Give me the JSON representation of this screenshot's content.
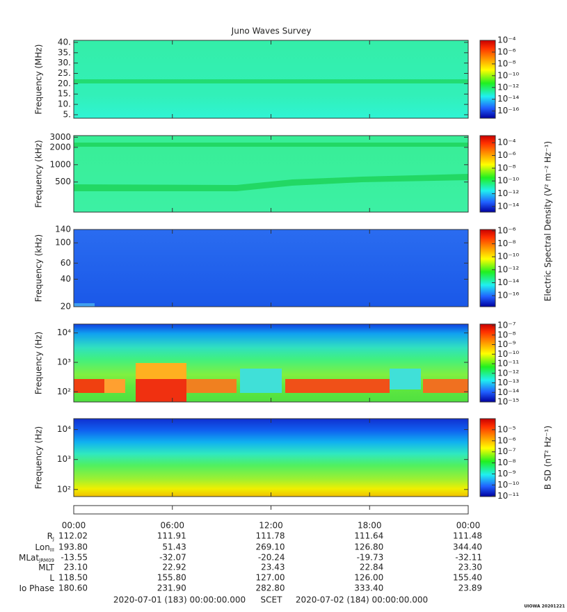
{
  "title": "Juno Waves Survey",
  "chart_data": [
    {
      "type": "spectrogram",
      "y_label": "Frequency (MHz)",
      "log": false,
      "ylim": [
        3.3,
        41
      ],
      "yticks": [
        {
          "value": 5,
          "label": "5."
        },
        {
          "value": 10,
          "label": "10."
        },
        {
          "value": 15,
          "label": "15."
        },
        {
          "value": 20,
          "label": "20."
        },
        {
          "value": 25,
          "label": "25."
        },
        {
          "value": 30,
          "label": "30."
        },
        {
          "value": 35,
          "label": "35."
        },
        {
          "value": 40,
          "label": "40."
        }
      ],
      "clim": [
        6e-18,
        0.0001
      ],
      "cticks": [
        {
          "value": 0.0001,
          "label": "10⁻⁴"
        },
        {
          "value": 1e-06,
          "label": "10⁻⁶"
        },
        {
          "value": 1e-08,
          "label": "10⁻⁸"
        },
        {
          "value": 1e-10,
          "label": "10⁻¹⁰"
        },
        {
          "value": 1e-12,
          "label": "10⁻¹²"
        },
        {
          "value": 1e-14,
          "label": "10⁻¹⁴"
        },
        {
          "value": 1e-16,
          "label": "10⁻¹⁶"
        }
      ]
    },
    {
      "type": "spectrogram",
      "y_label": "Frequency (kHz)",
      "log": true,
      "ylim": [
        150,
        3200
      ],
      "yticks": [
        500,
        1000,
        2000,
        3000
      ],
      "clim": [
        1.3e-15,
        0.0013
      ],
      "cticks": [
        {
          "value": 0.0001,
          "label": "10⁻⁴"
        },
        {
          "value": 1e-06,
          "label": "10⁻⁶"
        },
        {
          "value": 1e-08,
          "label": "10⁻⁸"
        },
        {
          "value": 1e-10,
          "label": "10⁻¹⁰"
        },
        {
          "value": 1e-12,
          "label": "10⁻¹²"
        },
        {
          "value": 1e-14,
          "label": "10⁻¹⁴"
        }
      ],
      "colorbar_label": "Electric Spectral Density (V² m⁻² Hz⁻¹)"
    },
    {
      "type": "spectrogram",
      "y_label": "Frequency (kHz)",
      "log": true,
      "ylim": [
        20,
        140
      ],
      "yticks": [
        20,
        40,
        60,
        100,
        140
      ],
      "clim": [
        2e-18,
        1.6e-06
      ],
      "cticks": [
        {
          "value": 1e-06,
          "label": "10⁻⁶"
        },
        {
          "value": 1e-08,
          "label": "10⁻⁸"
        },
        {
          "value": 1e-10,
          "label": "10⁻¹⁰"
        },
        {
          "value": 1e-12,
          "label": "10⁻¹²"
        },
        {
          "value": 1e-14,
          "label": "10⁻¹⁴"
        },
        {
          "value": 1e-16,
          "label": "10⁻¹⁶"
        }
      ]
    },
    {
      "type": "spectrogram",
      "y_label": "Frequency (Hz)",
      "log": true,
      "ylim": [
        45,
        20000
      ],
      "yticks": [
        {
          "value": 100,
          "label": "10²"
        },
        {
          "value": 1000,
          "label": "10³"
        },
        {
          "value": 10000,
          "label": "10⁴"
        }
      ],
      "clim": [
        1e-15,
        1.4e-07
      ],
      "cticks": [
        {
          "value": 1e-07,
          "label": "10⁻⁷"
        },
        {
          "value": 1e-08,
          "label": "10⁻⁸"
        },
        {
          "value": 1e-09,
          "label": "10⁻⁹"
        },
        {
          "value": 1e-10,
          "label": "10⁻¹⁰"
        },
        {
          "value": 1e-11,
          "label": "10⁻¹¹"
        },
        {
          "value": 1e-12,
          "label": "10⁻¹²"
        },
        {
          "value": 1e-13,
          "label": "10⁻¹³"
        },
        {
          "value": 1e-14,
          "label": "10⁻¹⁴"
        },
        {
          "value": 1e-15,
          "label": "10⁻¹⁵"
        }
      ]
    },
    {
      "type": "spectrogram",
      "y_label": "Frequency (Hz)",
      "log": true,
      "ylim": [
        58,
        23000
      ],
      "yticks": [
        {
          "value": 100,
          "label": "10²"
        },
        {
          "value": 1000,
          "label": "10³"
        },
        {
          "value": 10000,
          "label": "10⁴"
        }
      ],
      "clim": [
        9e-12,
        0.0001
      ],
      "cticks": [
        {
          "value": 1e-05,
          "label": "10⁻⁵"
        },
        {
          "value": 1e-06,
          "label": "10⁻⁶"
        },
        {
          "value": 1e-07,
          "label": "10⁻⁷"
        },
        {
          "value": 1e-08,
          "label": "10⁻⁸"
        },
        {
          "value": 1e-09,
          "label": "10⁻⁹"
        },
        {
          "value": 1e-10,
          "label": "10⁻¹⁰"
        },
        {
          "value": 1e-11,
          "label": "10⁻¹¹"
        }
      ],
      "colorbar_label": "B SD (nT² Hz⁻¹)"
    }
  ],
  "time_axis": {
    "xlim": [
      0,
      24
    ],
    "xticks": [
      {
        "value": 0,
        "label": "00:00"
      },
      {
        "value": 6,
        "label": "06:00"
      },
      {
        "value": 12,
        "label": "12:00"
      },
      {
        "value": 18,
        "label": "18:00"
      },
      {
        "value": 24,
        "label": "00:00"
      }
    ]
  },
  "ephemeris": [
    {
      "label": "R",
      "sub": "J",
      "values": [
        "112.02",
        "111.91",
        "111.78",
        "111.64",
        "111.48"
      ]
    },
    {
      "label": "Lon",
      "sub": "III",
      "values": [
        "193.80",
        "51.43",
        "269.10",
        "126.80",
        "344.40"
      ]
    },
    {
      "label": "MLat",
      "sub": "JRM09",
      "values": [
        "-13.55",
        "-32.07",
        "-20.24",
        "-19.73",
        "-32.11"
      ]
    },
    {
      "label": "MLT",
      "values": [
        "23.10",
        "22.92",
        "23.43",
        "22.84",
        "23.30"
      ]
    },
    {
      "label": "L",
      "values": [
        "118.50",
        "155.80",
        "127.00",
        "126.00",
        "155.40"
      ]
    },
    {
      "label": "Io Phase",
      "values": [
        "180.60",
        "231.90",
        "282.80",
        "333.40",
        "23.89"
      ]
    }
  ],
  "footer": {
    "start": "2020-07-01 (183) 00:00:00.000",
    "frame": "SCET",
    "end": "2020-07-02 (184) 00:00:00.000"
  },
  "credit": "UIOWA 20201221"
}
